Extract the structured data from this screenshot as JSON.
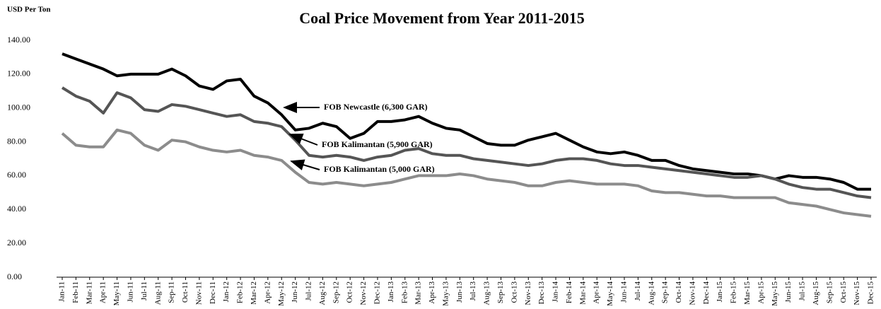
{
  "chart_data": {
    "type": "line",
    "title": "Coal Price Movement from Year 2011-2015",
    "y_label": "USD Per Ton",
    "categories": [
      "Jan-11",
      "Feb-11",
      "Mar-11",
      "Apr-11",
      "May-11",
      "Jun-11",
      "Jul-11",
      "Aug-11",
      "Sep-11",
      "Oct-11",
      "Nov-11",
      "Dec-11",
      "Jan-12",
      "Feb-12",
      "Mar-12",
      "Apr-12",
      "May-12",
      "Jun-12",
      "Jul-12",
      "Aug-12",
      "Sep-12",
      "Oct-12",
      "Nov-12",
      "Dec-12",
      "Jan-13",
      "Feb-13",
      "Mar-13",
      "Apr-13",
      "May-13",
      "Jun-13",
      "Jul-13",
      "Aug-13",
      "Sep-13",
      "Oct-13",
      "Nov-13",
      "Dec-13",
      "Jan-14",
      "Feb-14",
      "Mar-14",
      "Apr-14",
      "May-14",
      "Jun-14",
      "Jul-14",
      "Aug-14",
      "Sep-14",
      "Oct-14",
      "Nov-14",
      "Dec-14",
      "Jan-15",
      "Feb-15",
      "Mar-15",
      "Apr-15",
      "May-15",
      "Jun-15",
      "Jul-15",
      "Aug-15",
      "Sep-15",
      "Oct-15",
      "Nov-15",
      "Dec-15"
    ],
    "series": [
      {
        "name": "FOB Newcastle (6,300 GAR)",
        "color": "#000000",
        "values": [
          132,
          129,
          126,
          123,
          119,
          120,
          120,
          120,
          123,
          119,
          113,
          111,
          116,
          117,
          107,
          103,
          96,
          87,
          88,
          91,
          89,
          82,
          85,
          92,
          92,
          93,
          95,
          91,
          88,
          87,
          83,
          79,
          78,
          78,
          81,
          83,
          85,
          81,
          77,
          74,
          73,
          74,
          72,
          69,
          69,
          66,
          64,
          63,
          62,
          61,
          61,
          60,
          58,
          60,
          59,
          59,
          58,
          56,
          52,
          52
        ]
      },
      {
        "name": "FOB Kalimantan (5,900 GAR)",
        "color": "#555555",
        "values": [
          112,
          107,
          104,
          97,
          109,
          106,
          99,
          98,
          102,
          101,
          99,
          97,
          95,
          96,
          92,
          91,
          89,
          81,
          72,
          71,
          72,
          71,
          69,
          71,
          72,
          75,
          76,
          73,
          72,
          72,
          70,
          69,
          68,
          67,
          66,
          67,
          69,
          70,
          70,
          69,
          67,
          66,
          66,
          65,
          64,
          63,
          62,
          61,
          60,
          59,
          59,
          60,
          58,
          55,
          53,
          52,
          52,
          50,
          48,
          47
        ]
      },
      {
        "name": "FOB Kalimantan (5,000 GAR)",
        "color": "#8c8c8c",
        "values": [
          85,
          78,
          77,
          77,
          87,
          85,
          78,
          75,
          81,
          80,
          77,
          75,
          74,
          75,
          72,
          71,
          69,
          62,
          56,
          55,
          56,
          55,
          54,
          55,
          56,
          58,
          60,
          60,
          60,
          61,
          60,
          58,
          57,
          56,
          54,
          54,
          56,
          57,
          56,
          55,
          55,
          55,
          54,
          51,
          50,
          50,
          49,
          48,
          48,
          47,
          47,
          47,
          47,
          44,
          43,
          42,
          40,
          38,
          37,
          36
        ]
      }
    ],
    "ylim": [
      0,
      140
    ],
    "yticks": [
      {
        "value": 0,
        "label": "0.00"
      },
      {
        "value": 20,
        "label": "20.00"
      },
      {
        "value": 40,
        "label": "40.00"
      },
      {
        "value": 60,
        "label": "60.00"
      },
      {
        "value": 80,
        "label": "80.00"
      },
      {
        "value": 100,
        "label": "100.00"
      },
      {
        "value": 120,
        "label": "120.00"
      },
      {
        "value": 140,
        "label": "140.00"
      }
    ]
  }
}
